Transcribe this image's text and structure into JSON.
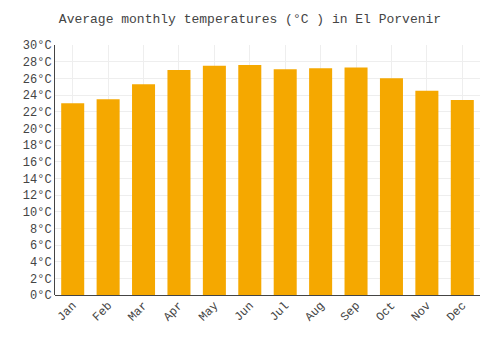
{
  "chart_data": {
    "type": "bar",
    "title": "Average monthly temperatures (°C ) in El Porvenir",
    "categories": [
      "Jan",
      "Feb",
      "Mar",
      "Apr",
      "May",
      "Jun",
      "Jul",
      "Aug",
      "Sep",
      "Oct",
      "Nov",
      "Dec"
    ],
    "values": [
      23.0,
      23.5,
      25.3,
      27.0,
      27.5,
      27.6,
      27.1,
      27.2,
      27.3,
      26.0,
      24.5,
      23.4
    ],
    "color": "#F5A800",
    "ylim": [
      0,
      30
    ],
    "yticks": [
      {
        "value": 0,
        "label": "0°C"
      },
      {
        "value": 2,
        "label": "2°C"
      },
      {
        "value": 4,
        "label": "4°C"
      },
      {
        "value": 6,
        "label": "6°C"
      },
      {
        "value": 8,
        "label": "8°C"
      },
      {
        "value": 10,
        "label": "10°C"
      },
      {
        "value": 12,
        "label": "12°C"
      },
      {
        "value": 14,
        "label": "14°C"
      },
      {
        "value": 16,
        "label": "16°C"
      },
      {
        "value": 18,
        "label": "18°C"
      },
      {
        "value": 20,
        "label": "20°C"
      },
      {
        "value": 22,
        "label": "22°C"
      },
      {
        "value": 24,
        "label": "24°C"
      },
      {
        "value": 26,
        "label": "26°C"
      },
      {
        "value": 28,
        "label": "28°C"
      },
      {
        "value": 30,
        "label": "30°C"
      }
    ],
    "grid": true
  }
}
